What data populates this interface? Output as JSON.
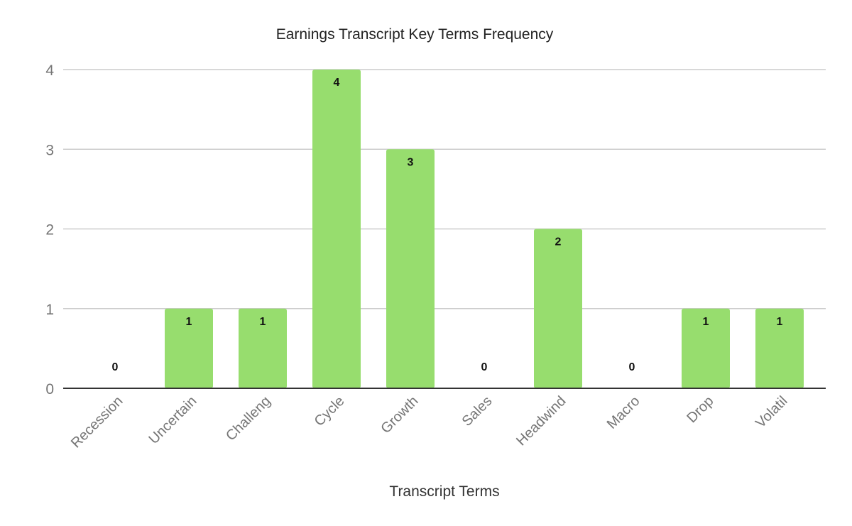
{
  "chart_data": {
    "type": "bar",
    "title": "Earnings Transcript Key Terms Frequency",
    "xlabel": "Transcript Terms",
    "ylabel": "",
    "categories": [
      "Recession",
      "Uncertain",
      "Challeng",
      "Cycle",
      "Growth",
      "Sales",
      "Headwind",
      "Macro",
      "Drop",
      "Volatil"
    ],
    "values": [
      0,
      1,
      1,
      4,
      3,
      0,
      2,
      0,
      1,
      1
    ],
    "ylim": [
      0,
      4
    ],
    "yticks": [
      "0",
      "1",
      "2",
      "3",
      "4"
    ],
    "grid": true,
    "legend": "none",
    "bar_color": "#97dd6e"
  }
}
